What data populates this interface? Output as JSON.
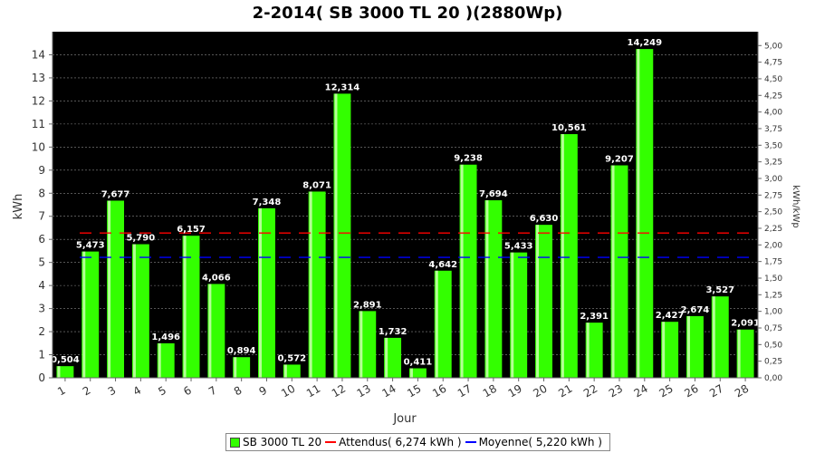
{
  "chart_data": {
    "type": "bar",
    "title": "2-2014( SB 3000 TL 20 )(2880Wp)",
    "xlabel": "Jour",
    "ylabel": "kWh",
    "y2label": "kWh/kWp",
    "categories": [
      "1",
      "2",
      "3",
      "4",
      "5",
      "6",
      "7",
      "8",
      "9",
      "10",
      "11",
      "12",
      "13",
      "14",
      "15",
      "16",
      "17",
      "18",
      "19",
      "20",
      "21",
      "22",
      "23",
      "24",
      "25",
      "26",
      "27",
      "28"
    ],
    "series": [
      {
        "name": "SB 3000 TL 20",
        "values": [
          0.504,
          5.473,
          7.677,
          5.79,
          1.496,
          6.157,
          4.066,
          0.894,
          7.348,
          0.572,
          8.071,
          12.314,
          2.891,
          1.732,
          0.411,
          4.642,
          9.238,
          7.694,
          5.433,
          6.63,
          10.561,
          2.391,
          9.207,
          14.249,
          2.427,
          2.674,
          3.527,
          2.091
        ]
      }
    ],
    "value_labels": [
      "0,504",
      "5,473",
      "7,677",
      "5,790",
      "1,496",
      "6,157",
      "4,066",
      "0,894",
      "7,348",
      "0,572",
      "8,071",
      "12,314",
      "2,891",
      "1,732",
      "0,411",
      "4,642",
      "9,238",
      "7,694",
      "5,433",
      "6,630",
      "10,561",
      "2,391",
      "9,207",
      "14,249",
      "2,427",
      "2,674",
      "3,527",
      "2,091"
    ],
    "reference_lines": [
      {
        "name": "Attendus",
        "value": 6.274,
        "color": "#ff0000"
      },
      {
        "name": "Moyenne",
        "value": 5.22,
        "color": "#0000ff"
      }
    ],
    "ylim": [
      0,
      15
    ],
    "y_ticks": [
      "0",
      "1",
      "2",
      "3",
      "4",
      "5",
      "6",
      "7",
      "8",
      "9",
      "10",
      "11",
      "12",
      "13",
      "14"
    ],
    "y2lim": [
      0,
      5.2083
    ],
    "y2_ticks": [
      "0,00",
      "0,25",
      "0,50",
      "0,75",
      "1,00",
      "1,25",
      "1,50",
      "1,75",
      "2,00",
      "2,25",
      "2,50",
      "2,75",
      "3,00",
      "3,25",
      "3,50",
      "3,75",
      "4,00",
      "4,25",
      "4,50",
      "4,75",
      "5,00"
    ],
    "grid": true,
    "legend_position": "bottom-center",
    "colors": {
      "bar": "#33ff00",
      "bar_highlight": "#ccffb0",
      "plot_bg": "#000000",
      "grid": "#888888"
    }
  },
  "legend": {
    "series_label": "SB 3000 TL 20",
    "attendus_label": "Attendus( 6,274 kWh )",
    "moyenne_label": "Moyenne( 5,220 kWh )"
  }
}
